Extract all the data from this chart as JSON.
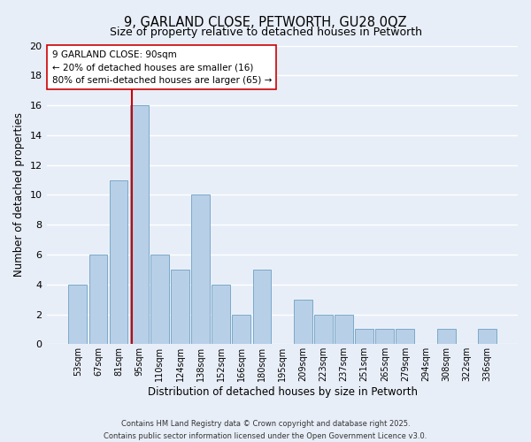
{
  "title": "9, GARLAND CLOSE, PETWORTH, GU28 0QZ",
  "subtitle": "Size of property relative to detached houses in Petworth",
  "xlabel": "Distribution of detached houses by size in Petworth",
  "ylabel": "Number of detached properties",
  "categories": [
    "53sqm",
    "67sqm",
    "81sqm",
    "95sqm",
    "110sqm",
    "124sqm",
    "138sqm",
    "152sqm",
    "166sqm",
    "180sqm",
    "195sqm",
    "209sqm",
    "223sqm",
    "237sqm",
    "251sqm",
    "265sqm",
    "279sqm",
    "294sqm",
    "308sqm",
    "322sqm",
    "336sqm"
  ],
  "values": [
    4,
    6,
    11,
    16,
    6,
    5,
    10,
    4,
    2,
    5,
    0,
    3,
    2,
    2,
    1,
    1,
    1,
    0,
    1,
    0,
    1
  ],
  "bar_color": "#b8cfe8",
  "bar_edgecolor": "#7aaac8",
  "background_color": "#e8eef8",
  "grid_color": "#ffffff",
  "ylim": [
    0,
    20
  ],
  "yticks": [
    0,
    2,
    4,
    6,
    8,
    10,
    12,
    14,
    16,
    18,
    20
  ],
  "property_line_color": "#cc0000",
  "annotation_line1": "9 GARLAND CLOSE: 90sqm",
  "annotation_line2": "← 20% of detached houses are smaller (16)",
  "annotation_line3": "80% of semi-detached houses are larger (65) →",
  "annotation_box_edgecolor": "#cc0000",
  "footer_line1": "Contains HM Land Registry data © Crown copyright and database right 2025.",
  "footer_line2": "Contains public sector information licensed under the Open Government Licence v3.0."
}
